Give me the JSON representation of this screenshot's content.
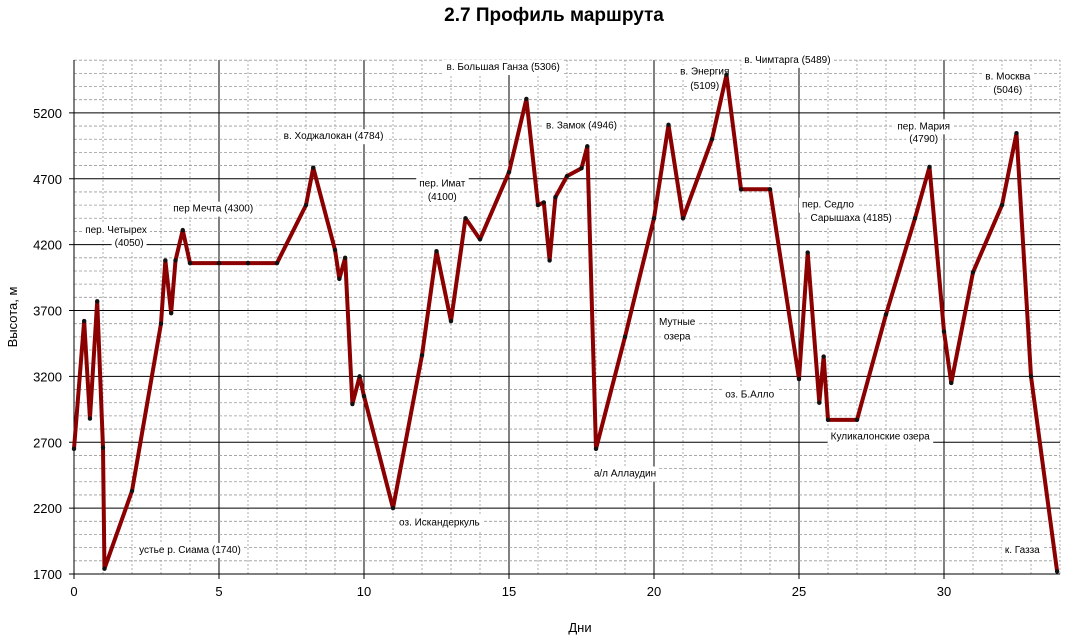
{
  "chart_data": {
    "type": "line",
    "title": "2.7 Профиль маршрута",
    "xlabel": "Дни",
    "ylabel": "Высота, м",
    "xlim": [
      0,
      34
    ],
    "ylim": [
      1700,
      5600
    ],
    "x_ticks": [
      0,
      5,
      10,
      15,
      20,
      25,
      30
    ],
    "y_ticks": [
      1700,
      2200,
      2700,
      3200,
      3700,
      4200,
      4700,
      5200
    ],
    "grid": true,
    "line_color": "#8b0000",
    "series": [
      {
        "x": [
          0,
          0.35,
          0.55,
          0.8,
          1.0,
          1.05,
          2.0,
          3.0,
          3.15,
          3.35,
          3.5,
          3.75,
          4.0,
          5.0,
          6.0,
          7.0,
          8.0,
          8.25,
          9.0,
          9.15,
          9.35,
          9.6,
          9.85,
          10.0,
          11.0,
          12.0,
          12.5,
          13.0,
          13.5,
          14.0,
          15.0,
          15.6,
          16.0,
          16.2,
          16.4,
          16.6,
          17.0,
          17.5,
          17.7,
          18.0,
          19.0,
          20.0,
          20.5,
          21.0,
          22.0,
          22.5,
          23.0,
          24.0,
          25.0,
          25.3,
          25.7,
          25.85,
          26.0,
          27.0,
          28.0,
          29.0,
          29.5,
          30.0,
          30.25,
          31.0,
          32.0,
          32.5,
          33.0,
          33.9
        ],
        "y": [
          2650,
          3620,
          2880,
          3770,
          2660,
          1740,
          2330,
          3600,
          4080,
          3680,
          4080,
          4310,
          4060,
          4060,
          4060,
          4060,
          4500,
          4784,
          4160,
          3940,
          4100,
          2990,
          3200,
          3050,
          2200,
          3360,
          4150,
          3620,
          4400,
          4240,
          4750,
          5306,
          4500,
          4520,
          4080,
          4560,
          4720,
          4780,
          4946,
          2650,
          3500,
          4400,
          5109,
          4400,
          5000,
          5489,
          4620,
          4620,
          3180,
          4140,
          3000,
          3350,
          2870,
          2870,
          3670,
          4400,
          4790,
          3540,
          3150,
          3990,
          4500,
          5046,
          3200,
          1720
        ]
      }
    ],
    "annotations": [
      {
        "text": "пер. Четырех",
        "x": 1.45,
        "y": 4290
      },
      {
        "text": "(4050)",
        "x": 1.9,
        "y": 4190
      },
      {
        "text": "пер Мечта (4300)",
        "x": 4.8,
        "y": 4450
      },
      {
        "text": "в. Ходжалокан (4784)",
        "x": 8.95,
        "y": 5000
      },
      {
        "text": "пер. Имат",
        "x": 12.7,
        "y": 4640
      },
      {
        "text": "(4100)",
        "x": 12.7,
        "y": 4540
      },
      {
        "text": "в. Большая Ганза (5306)",
        "x": 14.8,
        "y": 5525
      },
      {
        "text": "в. Замок (4946)",
        "x": 17.5,
        "y": 5080
      },
      {
        "text": "в. Энергия",
        "x": 21.75,
        "y": 5490
      },
      {
        "text": "(5109)",
        "x": 21.75,
        "y": 5380
      },
      {
        "text": "в. Чимтарга (5489)",
        "x": 24.6,
        "y": 5580
      },
      {
        "text": "пер. Мария",
        "x": 29.3,
        "y": 5075
      },
      {
        "text": "(4790)",
        "x": 29.3,
        "y": 4980
      },
      {
        "text": "в. Москва",
        "x": 32.2,
        "y": 5455
      },
      {
        "text": "(5046)",
        "x": 32.2,
        "y": 5350
      },
      {
        "text": "пер. Седло",
        "x": 26.0,
        "y": 4480
      },
      {
        "text": "Сарышаха (4185)",
        "x": 26.8,
        "y": 4380
      },
      {
        "text": "Мутные",
        "x": 20.8,
        "y": 3590
      },
      {
        "text": "озера",
        "x": 20.8,
        "y": 3480
      },
      {
        "text": "оз. Б.Алло",
        "x": 23.3,
        "y": 3040
      },
      {
        "text": "Куликалонские озера",
        "x": 27.8,
        "y": 2720
      },
      {
        "text": "а/л Аллаудин",
        "x": 19.0,
        "y": 2440
      },
      {
        "text": "оз. Искандеркуль",
        "x": 12.6,
        "y": 2070
      },
      {
        "text": "устье р. Сиама  (1740)",
        "x": 4.0,
        "y": 1860
      },
      {
        "text": "к. Газза",
        "x": 32.7,
        "y": 1860
      }
    ]
  }
}
